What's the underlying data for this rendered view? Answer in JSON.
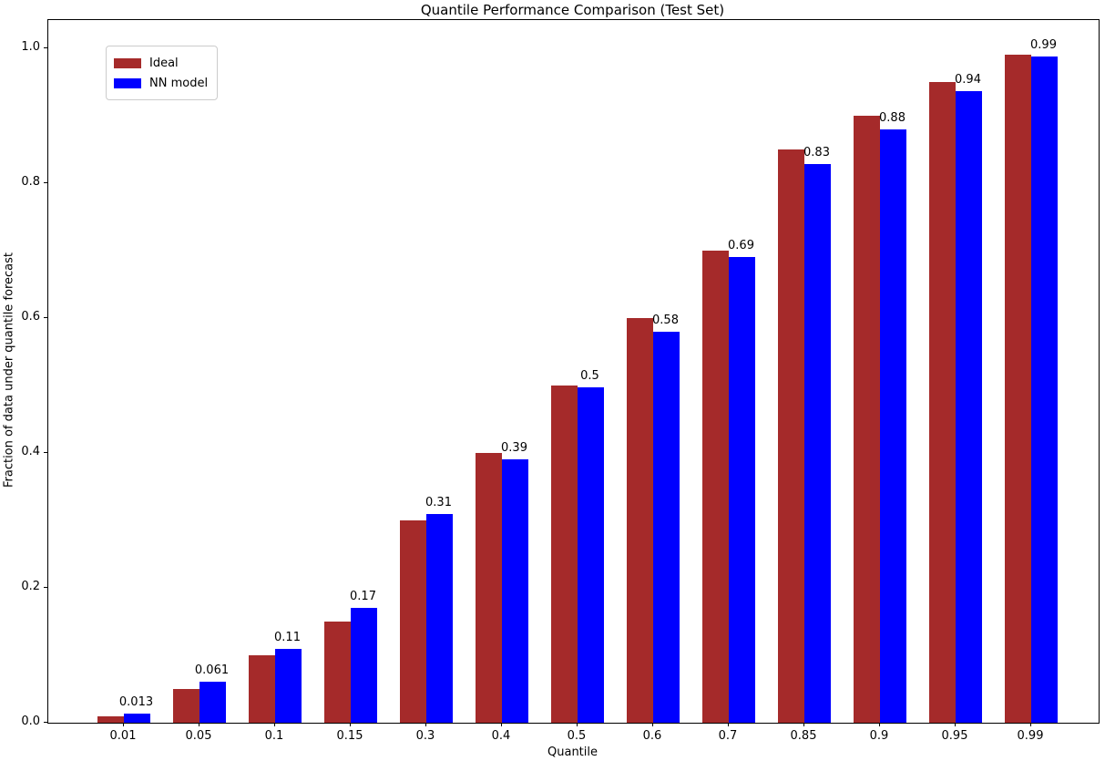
{
  "chart_data": {
    "type": "bar",
    "title": "Quantile Performance Comparison (Test Set)",
    "xlabel": "Quantile",
    "ylabel": "Fraction of data under quantile forecast",
    "categories": [
      "0.01",
      "0.05",
      "0.1",
      "0.15",
      "0.3",
      "0.4",
      "0.5",
      "0.6",
      "0.7",
      "0.85",
      "0.9",
      "0.95",
      "0.99"
    ],
    "series": [
      {
        "name": "Ideal",
        "color": "#a52a2a",
        "values": [
          0.01,
          0.05,
          0.1,
          0.15,
          0.3,
          0.4,
          0.5,
          0.6,
          0.7,
          0.85,
          0.9,
          0.95,
          0.99
        ]
      },
      {
        "name": "NN model",
        "color": "#0000ff",
        "values": [
          0.013,
          0.061,
          0.11,
          0.17,
          0.31,
          0.39,
          0.497,
          0.58,
          0.69,
          0.828,
          0.88,
          0.937,
          0.988
        ]
      }
    ],
    "bar_labels": [
      "0.013",
      "0.061",
      "0.11",
      "0.17",
      "0.31",
      "0.39",
      "0.5",
      "0.58",
      "0.69",
      "0.83",
      "0.88",
      "0.94",
      "0.99"
    ],
    "bar_labels_on_series": "NN model",
    "y_ticks": [
      "0.0",
      "0.2",
      "0.4",
      "0.6",
      "0.8",
      "1.0"
    ],
    "ylim": [
      0.0,
      1.042
    ],
    "grid": false,
    "legend_position": "upper left"
  }
}
